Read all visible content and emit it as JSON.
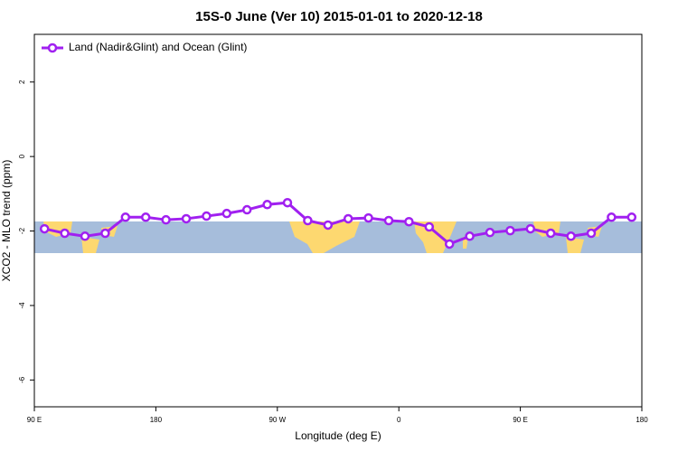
{
  "chart_data": {
    "type": "line",
    "title": "15S-0 June (Ver 10)   2015-01-01 to 2020-12-18",
    "x_label": "Longitude (deg E)",
    "y_label": "XCO2 - MLO trend (ppm)",
    "x": [
      97.5,
      112.5,
      127.5,
      142.5,
      157.5,
      172.5,
      187.5,
      202.5,
      217.5,
      232.5,
      247.5,
      262.5,
      277.5,
      292.5,
      307.5,
      322.5,
      337.5,
      352.5,
      367.5,
      382.5,
      397.5,
      412.5,
      427.5,
      442.5,
      457.5,
      472.5,
      487.5,
      502.5,
      517.5,
      532.5
    ],
    "series": [
      {
        "name": "Land (Nadir&Glint) and Ocean (Glint)",
        "color": "#a020f0",
        "values": [
          -1.94,
          -2.06,
          -2.14,
          -2.06,
          -1.63,
          -1.63,
          -1.7,
          -1.67,
          -1.6,
          -1.53,
          -1.43,
          -1.29,
          -1.24,
          -1.72,
          -1.84,
          -1.67,
          -1.65,
          -1.72,
          -1.75,
          -1.89,
          -2.35,
          -2.14,
          -2.04,
          -1.99,
          -1.94,
          -2.06,
          -2.14,
          -2.06,
          -1.63,
          -1.63
        ]
      }
    ],
    "xlim": [
      90,
      540
    ],
    "xticks": [
      {
        "value": 90,
        "label": "90 E"
      },
      180,
      {
        "value": 270,
        "label": "90 W"
      },
      {
        "value": 360,
        "label": "0"
      },
      {
        "value": 450,
        "label": "90 E"
      },
      {
        "value": 540,
        "label": "180"
      }
    ],
    "ylim": [
      -6.72,
      3.28
    ],
    "yticks": [
      -6,
      -4,
      -2,
      0,
      2
    ],
    "legend": "top-left"
  }
}
